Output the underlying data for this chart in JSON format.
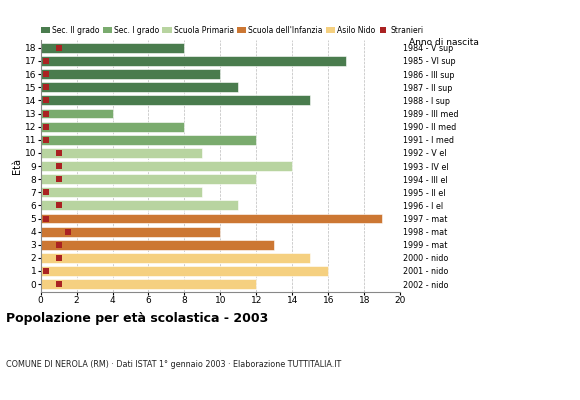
{
  "ages": [
    18,
    17,
    16,
    15,
    14,
    13,
    12,
    11,
    10,
    9,
    8,
    7,
    6,
    5,
    4,
    3,
    2,
    1,
    0
  ],
  "bar_values": [
    8,
    17,
    10,
    11,
    15,
    4,
    8,
    12,
    9,
    14,
    12,
    9,
    11,
    19,
    10,
    13,
    15,
    16,
    12
  ],
  "bar_colors": [
    "#4a7c4e",
    "#4a7c4e",
    "#4a7c4e",
    "#4a7c4e",
    "#4a7c4e",
    "#7aab6e",
    "#7aab6e",
    "#7aab6e",
    "#b8d4a0",
    "#b8d4a0",
    "#b8d4a0",
    "#b8d4a0",
    "#b8d4a0",
    "#cc7733",
    "#cc7733",
    "#cc7733",
    "#f5d080",
    "#f5d080",
    "#f5d080"
  ],
  "stranieri_x": [
    1,
    0.3,
    0.3,
    0.3,
    0.3,
    0.3,
    0.3,
    0.3,
    1,
    1,
    1,
    0.3,
    1,
    0.3,
    1.5,
    1,
    1,
    0.3,
    1
  ],
  "anno_di_nascita": [
    "1984 - V sup",
    "1985 - VI sup",
    "1986 - III sup",
    "1987 - II sup",
    "1988 - I sup",
    "1989 - III med",
    "1990 - II med",
    "1991 - I med",
    "1992 - V el",
    "1993 - IV el",
    "1994 - III el",
    "1995 - II el",
    "1996 - I el",
    "1997 - mat",
    "1998 - mat",
    "1999 - mat",
    "2000 - nido",
    "2001 - nido",
    "2002 - nido"
  ],
  "xlim": [
    0,
    20
  ],
  "xticks": [
    0,
    2,
    4,
    6,
    8,
    10,
    12,
    14,
    16,
    18,
    20
  ],
  "legend_labels": [
    "Sec. II grado",
    "Sec. I grado",
    "Scuola Primaria",
    "Scuola dell'Infanzia",
    "Asilo Nido",
    "Stranieri"
  ],
  "legend_colors": [
    "#4a7c4e",
    "#7aab6e",
    "#b8d4a0",
    "#cc7733",
    "#f5d080",
    "#aa2222"
  ],
  "title": "Popolazione per età scolastica - 2003",
  "subtitle": "COMUNE DI NEROLA (RM) · Dati ISTAT 1° gennaio 2003 · Elaborazione TUTTITALIA.IT",
  "ylabel": "Età",
  "right_label": "Anno di nascita",
  "bar_height": 0.75,
  "stranieri_color": "#aa2222",
  "stranieri_size": 4,
  "grid_color": "#aaaaaa"
}
